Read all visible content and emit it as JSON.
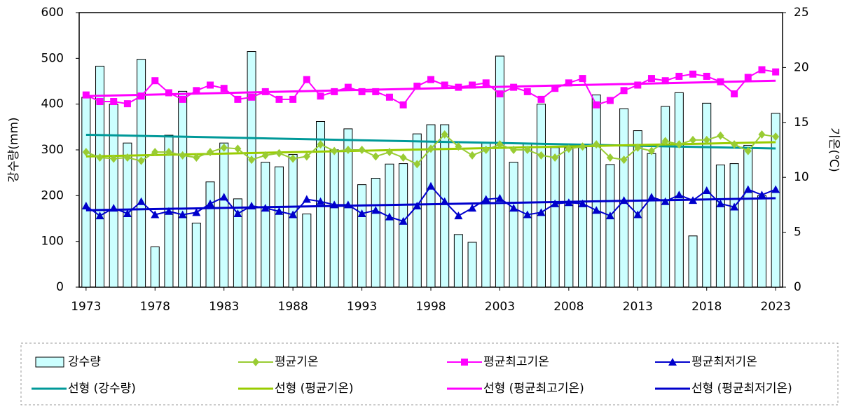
{
  "chart_data": {
    "type": "combo",
    "y_label": "강수량(mm)",
    "y2_label": "기온(℃)",
    "x": [
      1973,
      1974,
      1975,
      1976,
      1977,
      1978,
      1979,
      1980,
      1981,
      1982,
      1983,
      1984,
      1985,
      1986,
      1987,
      1988,
      1989,
      1990,
      1991,
      1992,
      1993,
      1994,
      1995,
      1996,
      1997,
      1998,
      1999,
      2000,
      2001,
      2002,
      2003,
      2004,
      2005,
      2006,
      2007,
      2008,
      2009,
      2010,
      2011,
      2012,
      2013,
      2014,
      2015,
      2016,
      2017,
      2018,
      2019,
      2020,
      2021,
      2022,
      2023
    ],
    "xlim": [
      1972.5,
      2023.5
    ],
    "xticks": [
      1973,
      1978,
      1983,
      1988,
      1993,
      1998,
      2003,
      2008,
      2013,
      2018,
      2023
    ],
    "ylim": [
      0,
      600
    ],
    "yticks": [
      0,
      100,
      200,
      300,
      400,
      500,
      600
    ],
    "y2lim": [
      0,
      25
    ],
    "y2ticks": [
      0,
      5,
      10,
      15,
      20,
      25
    ],
    "series": [
      {
        "name": "강수량",
        "type": "bar",
        "color": "#ccffff",
        "values": [
          415,
          483,
          400,
          315,
          498,
          88,
          332,
          428,
          140,
          230,
          315,
          193,
          515,
          273,
          263,
          290,
          160,
          362,
          300,
          346,
          224,
          238,
          269,
          270,
          335,
          355,
          355,
          115,
          98,
          315,
          505,
          273,
          315,
          400,
          305,
          305,
          305,
          420,
          268,
          390,
          342,
          292,
          395,
          425,
          112,
          402,
          267,
          270,
          310,
          200,
          380
        ]
      },
      {
        "name": "평균기온",
        "type": "line",
        "marker": "diamond",
        "axis": "y2",
        "color": "#99cc33",
        "values": [
          12.3,
          11.8,
          11.7,
          11.8,
          11.5,
          12.3,
          12.3,
          12.0,
          11.8,
          12.3,
          12.7,
          12.6,
          11.6,
          12.0,
          12.2,
          11.7,
          11.9,
          13.0,
          12.4,
          12.5,
          12.5,
          11.9,
          12.3,
          11.8,
          11.2,
          12.6,
          13.9,
          12.8,
          12.0,
          12.5,
          13.0,
          12.5,
          12.5,
          12.0,
          11.8,
          12.6,
          12.8,
          13.0,
          11.8,
          11.6,
          12.7,
          12.4,
          13.3,
          13.0,
          13.4,
          13.4,
          13.8,
          13.0,
          12.4,
          13.9,
          13.7
        ]
      },
      {
        "name": "평균최고기온",
        "type": "line",
        "marker": "square",
        "axis": "y2",
        "color": "#ff00ff",
        "values": [
          17.5,
          16.9,
          16.9,
          16.7,
          17.4,
          18.8,
          17.7,
          17.1,
          17.9,
          18.4,
          18.1,
          17.1,
          17.3,
          17.8,
          17.1,
          17.1,
          18.9,
          17.4,
          17.8,
          18.2,
          17.8,
          17.8,
          17.3,
          16.6,
          18.3,
          18.9,
          18.4,
          18.2,
          18.4,
          18.6,
          17.6,
          18.2,
          17.8,
          17.1,
          18.1,
          18.6,
          19.0,
          16.6,
          17.0,
          17.9,
          18.4,
          19.0,
          18.8,
          19.2,
          19.4,
          19.2,
          18.7,
          17.6,
          19.1,
          19.8,
          19.6
        ]
      },
      {
        "name": "평균최저기온",
        "type": "line",
        "marker": "triangle",
        "axis": "y2",
        "color": "#0000cc",
        "values": [
          7.4,
          6.5,
          7.2,
          6.7,
          7.8,
          6.6,
          6.9,
          6.6,
          6.8,
          7.6,
          8.2,
          6.7,
          7.4,
          7.2,
          6.9,
          6.6,
          8.0,
          7.8,
          7.5,
          7.5,
          6.7,
          7.0,
          6.4,
          6.0,
          7.4,
          9.2,
          7.8,
          6.5,
          7.2,
          8.0,
          8.1,
          7.2,
          6.6,
          6.8,
          7.6,
          7.7,
          7.6,
          7.0,
          6.5,
          7.9,
          6.6,
          8.2,
          7.8,
          8.4,
          7.9,
          8.8,
          7.6,
          7.3,
          8.9,
          8.4,
          8.9
        ]
      },
      {
        "name": "선형 (강수량)",
        "type": "trend",
        "color": "#009999",
        "x": [
          1973,
          2023
        ],
        "values": [
          333,
          303
        ]
      },
      {
        "name": "선형 (평균기온)",
        "type": "trend",
        "axis": "y2",
        "color": "#99cc00",
        "x": [
          1973,
          2023
        ],
        "values": [
          11.9,
          13.2
        ]
      },
      {
        "name": "선형 (평균최고기온)",
        "type": "trend",
        "axis": "y2",
        "color": "#ff00ff",
        "x": [
          1973,
          2023
        ],
        "values": [
          17.4,
          18.8
        ]
      },
      {
        "name": "선형 (평균최저기온)",
        "type": "trend",
        "axis": "y2",
        "color": "#0000cc",
        "x": [
          1973,
          2023
        ],
        "values": [
          7.0,
          8.1
        ]
      }
    ]
  }
}
